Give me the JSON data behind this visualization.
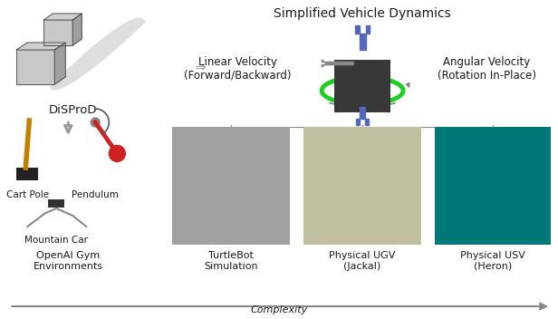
{
  "title": "Simplified Vehicle Dynamics",
  "complexity_label": "Complexity",
  "linear_velocity_label": "Linear Velocity\n(Forward/Backward)",
  "angular_velocity_label": "Angular Velocity\n(Rotation In-Place)",
  "disprod_label": "DiSProD",
  "col_labels": [
    "OpenAI Gym\nEnvironments",
    "TurtleBot\nSimulation",
    "Physical UGV\n(Jackal)",
    "Physical USV\n(Heron)"
  ],
  "sub_labels": [
    "Cart Pole",
    "Pendulum",
    "Mountain Car"
  ],
  "background_color": "#ffffff",
  "text_color": "#1a1a1a",
  "gray_arrow_color": "#888888",
  "blue_arrow_color": "#5566bb",
  "green_ring_color": "#22cc22",
  "hollow_arrow_color": "#aaaaaa",
  "turtlebot_color": "#a0a0a0",
  "ugv_color": "#c0bfa0",
  "usv_color": "#007878",
  "vehicle_box_color": "#383838",
  "box3d_face": "#c8c8c8",
  "box3d_top": "#d8d8d8",
  "box3d_right": "#a0a0a0",
  "box3d_edge": "#555555",
  "swoosh_color": "#bbbbbb",
  "cartpole_color": "#c08000",
  "cart_color": "#222222",
  "pendulum_color": "#cc2222",
  "font_size_title": 10,
  "font_size_label": 8.5,
  "font_size_small": 8,
  "font_size_sublabel": 7.5
}
